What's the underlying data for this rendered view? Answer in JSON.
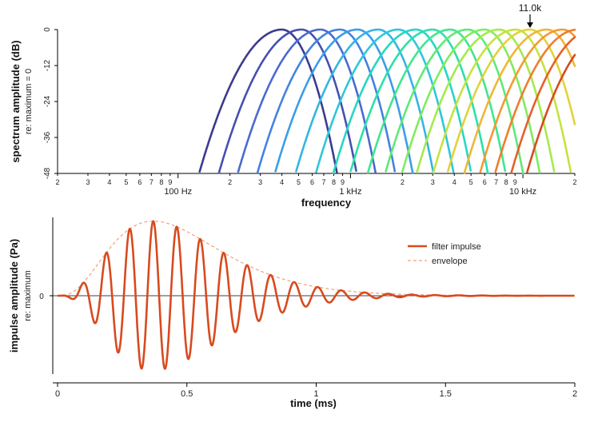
{
  "chart_data": [
    {
      "type": "line",
      "title": "",
      "xlabel": "frequency",
      "ylabel": "spectrum amplitude (dB)",
      "ylabel_sub": "re: maximum = 0",
      "x_scale": "log",
      "xlim": [
        200,
        20000
      ],
      "ylim": [
        -48,
        0
      ],
      "yticks": [
        "0",
        "-12",
        "-24",
        "-36",
        "-48"
      ],
      "ytick_values": [
        0,
        -12,
        -24,
        -36,
        -48
      ],
      "x_minor_ticks": [
        {
          "v": 200,
          "label": "2"
        },
        {
          "v": 300,
          "label": "3"
        },
        {
          "v": 400,
          "label": "4"
        },
        {
          "v": 500,
          "label": "5"
        },
        {
          "v": 600,
          "label": "6"
        },
        {
          "v": 700,
          "label": "7"
        },
        {
          "v": 800,
          "label": "8"
        },
        {
          "v": 900,
          "label": "9"
        },
        {
          "v": 2000,
          "label": "2"
        },
        {
          "v": 3000,
          "label": "3"
        },
        {
          "v": 4000,
          "label": "4"
        },
        {
          "v": 5000,
          "label": "5"
        },
        {
          "v": 6000,
          "label": "6"
        },
        {
          "v": 7000,
          "label": "7"
        },
        {
          "v": 8000,
          "label": "8"
        },
        {
          "v": 9000,
          "label": "9"
        },
        {
          "v": 20000,
          "label": "2"
        },
        {
          "v": 30000,
          "label": "3"
        },
        {
          "v": 40000,
          "label": "4"
        },
        {
          "v": 50000,
          "label": "5"
        },
        {
          "v": 60000,
          "label": "6"
        },
        {
          "v": 70000,
          "label": "7"
        },
        {
          "v": 80000,
          "label": "8"
        },
        {
          "v": 90000,
          "label": "9"
        },
        {
          "v": 200000,
          "label": "2"
        }
      ],
      "x_major_ticks": [
        {
          "v": 1000,
          "label": "100 Hz"
        },
        {
          "v": 10000,
          "label": "1 kHz"
        },
        {
          "v": 100000,
          "label": "10 kHz"
        }
      ],
      "annotation": {
        "label": "11.0k",
        "x": 110000,
        "y": 0
      },
      "filters": [
        {
          "center": 4000,
          "left_end": -6.5,
          "right_reach": 62000,
          "color": "#3b3b8f"
        },
        {
          "center": 5200,
          "left_end": -13,
          "right_reach": 70000,
          "color": "#4550b0"
        },
        {
          "center": 6700,
          "left_end": -20,
          "right_reach": 76000,
          "color": "#4a6ad0"
        },
        {
          "center": 8700,
          "left_end": -27,
          "right_reach": 82000,
          "color": "#4383e0"
        },
        {
          "center": 11000,
          "left_end": -34,
          "right_reach": 88000,
          "color": "#3b9de8"
        },
        {
          "center": 14500,
          "left_end": -40,
          "right_reach": 95000,
          "color": "#33b5e5"
        },
        {
          "center": 19000,
          "left_end": -47,
          "right_reach": 102000,
          "color": "#2dc8d9"
        },
        {
          "center": 24000,
          "left_end": -48,
          "right_reach": 110000,
          "color": "#27d6c4"
        },
        {
          "center": 30000,
          "left_end": -48,
          "right_reach": 118000,
          "color": "#2ce0aa"
        },
        {
          "center": 38000,
          "left_end": -48,
          "right_reach": 126000,
          "color": "#40e690"
        },
        {
          "center": 48000,
          "left_end": -48,
          "right_reach": 134000,
          "color": "#5eea76"
        },
        {
          "center": 60000,
          "left_end": -48,
          "right_reach": 142000,
          "color": "#80ec5e"
        },
        {
          "center": 73000,
          "left_end": -48,
          "right_reach": 150000,
          "color": "#a4ea4c"
        },
        {
          "center": 91000,
          "left_end": -48,
          "right_reach": 158000,
          "color": "#c6e240"
        },
        {
          "center": 110000,
          "left_end": -48,
          "right_reach": 166000,
          "color": "#e2d23a"
        },
        {
          "center": 138000,
          "left_end": -48,
          "right_reach": 176000,
          "color": "#f0b638"
        },
        {
          "center": 170000,
          "left_end": -48,
          "right_reach": 186000,
          "color": "#f29a34"
        },
        {
          "center": 208000,
          "left_end": -48,
          "right_reach": 196000,
          "color": "#ee7e2e"
        },
        {
          "center": 258000,
          "left_end": -48,
          "right_reach": 208000,
          "color": "#e66028"
        },
        {
          "center": 318000,
          "left_end": -48,
          "right_reach": 222000,
          "color": "#d84a20"
        }
      ]
    },
    {
      "type": "line",
      "title": "",
      "xlabel": "time (ms)",
      "ylabel": "impulse amplitude (Pa)",
      "ylabel_sub": "re: maximum",
      "xlim": [
        0,
        2
      ],
      "ylim": [
        -1.05,
        1.05
      ],
      "xticks": [
        "0",
        "0.5",
        "1",
        "1.5",
        "2"
      ],
      "xtick_values": [
        0,
        0.5,
        1,
        1.5,
        2
      ],
      "yticks": [
        "0"
      ],
      "ytick_values": [
        0
      ],
      "legend_position": "top-right",
      "series": [
        {
          "name": "filter impulse",
          "color": "#d84a1e",
          "frequency_khz": 11.0,
          "peak_time_ms": 0.37,
          "samples_per_ms": 600
        },
        {
          "name": "envelope",
          "color": "#f0a07c",
          "style": "dashed",
          "peak_time_ms": 0.37
        }
      ]
    }
  ]
}
